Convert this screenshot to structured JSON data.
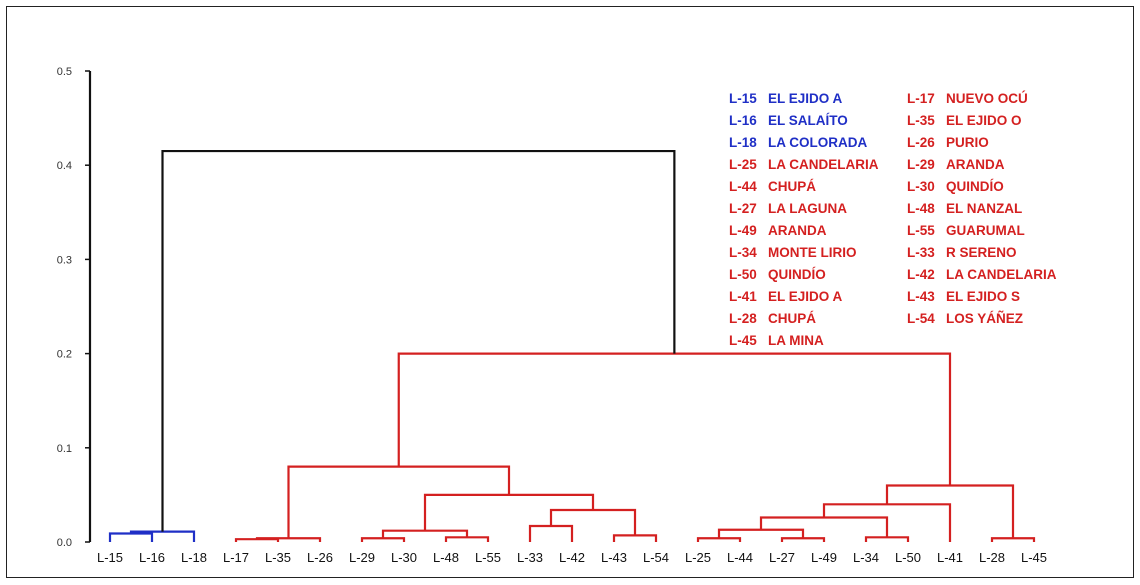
{
  "colors": {
    "blue": "#1f2fc6",
    "red": "#d42020",
    "black": "#111111"
  },
  "chart_data": {
    "type": "dendrogram",
    "ylim": [
      0,
      0.5
    ],
    "yticks": [
      "0.0",
      "0.1",
      "0.2",
      "0.3",
      "0.4",
      "0.5"
    ],
    "leaves": [
      "L-15",
      "L-16",
      "L-18",
      "L-17",
      "L-35",
      "L-26",
      "L-29",
      "L-30",
      "L-48",
      "L-55",
      "L-33",
      "L-42",
      "L-43",
      "L-54",
      "L-25",
      "L-44",
      "L-27",
      "L-49",
      "L-34",
      "L-50",
      "L-41",
      "L-28",
      "L-45"
    ],
    "merges": [
      {
        "a": "L-16",
        "b": "L-15",
        "h": 0.009,
        "color": "blue"
      },
      {
        "a": "c0",
        "b": "L-18",
        "h": 0.011,
        "color": "blue"
      },
      {
        "a": "L-17",
        "b": "L-35",
        "h": 0.003,
        "color": "red"
      },
      {
        "a": "c2",
        "b": "L-26",
        "h": 0.004,
        "color": "red"
      },
      {
        "a": "L-29",
        "b": "L-30",
        "h": 0.004,
        "color": "red"
      },
      {
        "a": "L-48",
        "b": "L-55",
        "h": 0.005,
        "color": "red"
      },
      {
        "a": "c4",
        "b": "c5",
        "h": 0.012,
        "color": "red"
      },
      {
        "a": "L-33",
        "b": "L-42",
        "h": 0.017,
        "color": "red"
      },
      {
        "a": "L-43",
        "b": "L-54",
        "h": 0.007,
        "color": "red"
      },
      {
        "a": "c7",
        "b": "c8",
        "h": 0.034,
        "color": "red"
      },
      {
        "a": "c6",
        "b": "c9",
        "h": 0.05,
        "color": "red"
      },
      {
        "a": "c3",
        "b": "c10",
        "h": 0.08,
        "color": "red"
      },
      {
        "a": "L-25",
        "b": "L-44",
        "h": 0.004,
        "color": "red"
      },
      {
        "a": "L-27",
        "b": "L-49",
        "h": 0.004,
        "color": "red"
      },
      {
        "a": "c12",
        "b": "c13",
        "h": 0.013,
        "color": "red"
      },
      {
        "a": "L-34",
        "b": "L-50",
        "h": 0.005,
        "color": "red"
      },
      {
        "a": "c14",
        "b": "c15",
        "h": 0.026,
        "color": "red"
      },
      {
        "a": "c16",
        "b": "L-41",
        "h": 0.04,
        "color": "red"
      },
      {
        "a": "L-28",
        "b": "L-45",
        "h": 0.004,
        "color": "red"
      },
      {
        "a": "c17",
        "b": "c18",
        "h": 0.06,
        "color": "red"
      },
      {
        "a": "c11",
        "b": "c19",
        "h": 0.2,
        "color": "red"
      },
      {
        "a": "c1",
        "b": "c20",
        "h": 0.415,
        "color": "black"
      }
    ],
    "legend": [
      {
        "code": "L-15",
        "name": "EL EJIDO A",
        "color": "blue"
      },
      {
        "code": "L-16",
        "name": "EL SALAÍTO",
        "color": "blue"
      },
      {
        "code": "L-18",
        "name": "LA COLORADA",
        "color": "blue"
      },
      {
        "code": "L-25",
        "name": "LA CANDELARIA",
        "color": "red"
      },
      {
        "code": "L-44",
        "name": "CHUPÁ",
        "color": "red"
      },
      {
        "code": "L-27",
        "name": "LA LAGUNA",
        "color": "red"
      },
      {
        "code": "L-49",
        "name": "ARANDA",
        "color": "red"
      },
      {
        "code": "L-34",
        "name": "MONTE LIRIO",
        "color": "red"
      },
      {
        "code": "L-50",
        "name": "QUINDÍO",
        "color": "red"
      },
      {
        "code": "L-41",
        "name": "EL EJIDO A",
        "color": "red"
      },
      {
        "code": "L-28",
        "name": "CHUPÁ",
        "color": "red"
      },
      {
        "code": "L-45",
        "name": "LA MINA",
        "color": "red"
      },
      {
        "code": "L-17",
        "name": "NUEVO OCÚ",
        "color": "red"
      },
      {
        "code": "L-35",
        "name": "EL EJIDO O",
        "color": "red"
      },
      {
        "code": "L-26",
        "name": "PURIO",
        "color": "red"
      },
      {
        "code": "L-29",
        "name": "ARANDA",
        "color": "red"
      },
      {
        "code": "L-30",
        "name": "QUINDÍO",
        "color": "red"
      },
      {
        "code": "L-48",
        "name": "EL NANZAL",
        "color": "red"
      },
      {
        "code": "L-55",
        "name": "GUARUMAL",
        "color": "red"
      },
      {
        "code": "L-33",
        "name": "R SERENO",
        "color": "red"
      },
      {
        "code": "L-42",
        "name": "LA CANDELARIA",
        "color": "red"
      },
      {
        "code": "L-43",
        "name": "EL EJIDO S",
        "color": "red"
      },
      {
        "code": "L-54",
        "name": "LOS YÁÑEZ",
        "color": "red"
      }
    ]
  }
}
